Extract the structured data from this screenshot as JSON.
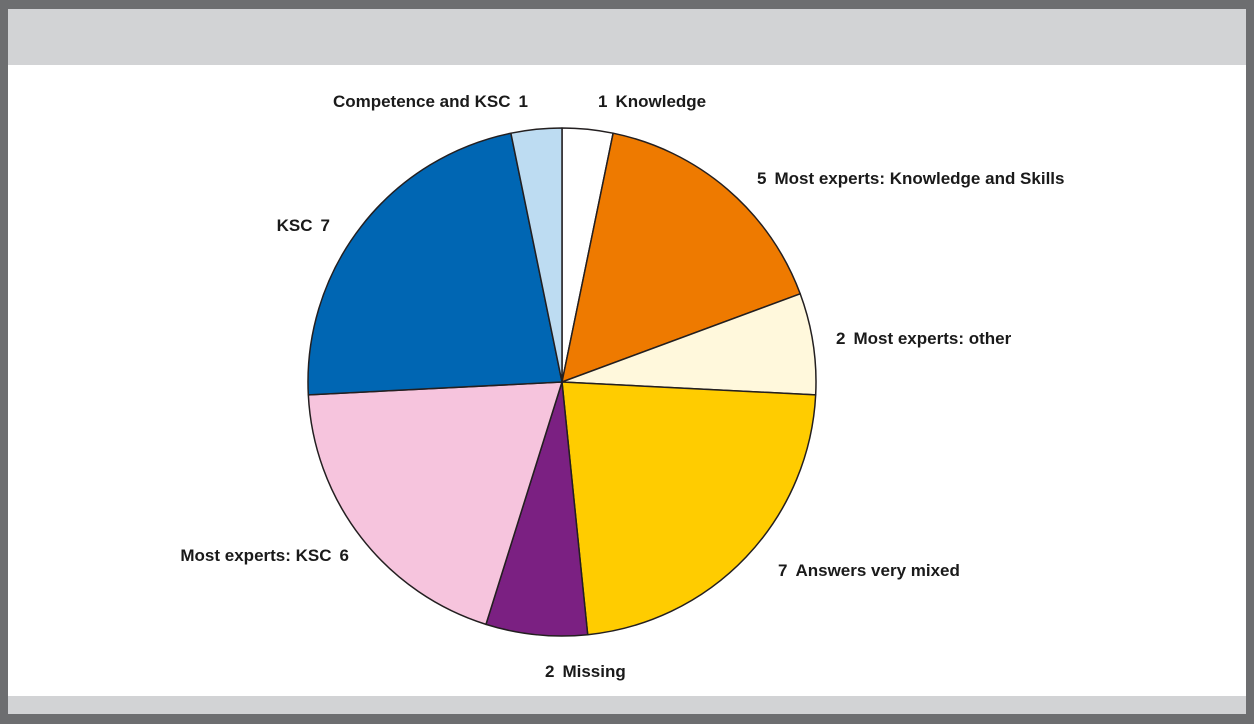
{
  "chart_data": {
    "type": "pie",
    "categories": [
      "Knowledge",
      "Most experts: Knowledge and Skills",
      "Most experts: other",
      "Answers very mixed",
      "Missing",
      "Most experts: KSC",
      "KSC",
      "Competence and KSC"
    ],
    "values": [
      1,
      5,
      2,
      7,
      2,
      6,
      7,
      1
    ],
    "colors": [
      "#ffffff",
      "#ee7a00",
      "#fff8dc",
      "#ffcc00",
      "#7b2082",
      "#f6c4dd",
      "#0066b3",
      "#bddcf2"
    ]
  }
}
